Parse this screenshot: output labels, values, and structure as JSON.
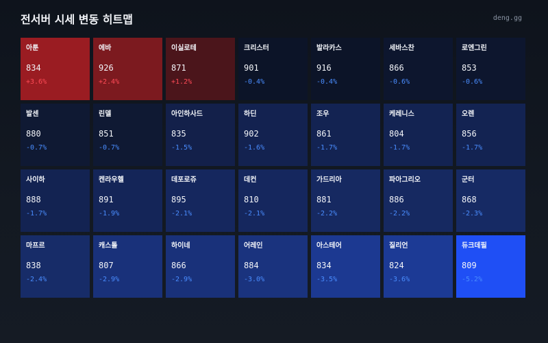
{
  "header": {
    "title": "전서버 시세 변동 히트맵",
    "brand": "deng.gg"
  },
  "colors": {
    "up_text": "#ff4b57",
    "down_text": "#4a8dff"
  },
  "cells": [
    {
      "name": "아툰",
      "price": "834",
      "change": "+3.6%",
      "dir": "up",
      "bg": "#9a1c22"
    },
    {
      "name": "에바",
      "price": "926",
      "change": "+2.4%",
      "dir": "up",
      "bg": "#7c1a1f"
    },
    {
      "name": "이실로테",
      "price": "871",
      "change": "+1.2%",
      "dir": "up",
      "bg": "#4b151b"
    },
    {
      "name": "크리스터",
      "price": "901",
      "change": "-0.4%",
      "dir": "down",
      "bg": "#0c1428"
    },
    {
      "name": "발라카스",
      "price": "916",
      "change": "-0.4%",
      "dir": "down",
      "bg": "#0c1428"
    },
    {
      "name": "세바스찬",
      "price": "866",
      "change": "-0.6%",
      "dir": "down",
      "bg": "#0d162e"
    },
    {
      "name": "로엔그린",
      "price": "853",
      "change": "-0.6%",
      "dir": "down",
      "bg": "#0d162e"
    },
    {
      "name": "발센",
      "price": "880",
      "change": "-0.7%",
      "dir": "down",
      "bg": "#0f1933"
    },
    {
      "name": "린델",
      "price": "851",
      "change": "-0.7%",
      "dir": "down",
      "bg": "#0f1933"
    },
    {
      "name": "아인하사드",
      "price": "835",
      "change": "-1.5%",
      "dir": "down",
      "bg": "#13204a"
    },
    {
      "name": "하딘",
      "price": "902",
      "change": "-1.6%",
      "dir": "down",
      "bg": "#132250"
    },
    {
      "name": "조우",
      "price": "861",
      "change": "-1.7%",
      "dir": "down",
      "bg": "#132352"
    },
    {
      "name": "케레니스",
      "price": "804",
      "change": "-1.7%",
      "dir": "down",
      "bg": "#132352"
    },
    {
      "name": "오렌",
      "price": "856",
      "change": "-1.7%",
      "dir": "down",
      "bg": "#132352"
    },
    {
      "name": "사이하",
      "price": "888",
      "change": "-1.7%",
      "dir": "down",
      "bg": "#132352"
    },
    {
      "name": "켄라우헬",
      "price": "891",
      "change": "-1.9%",
      "dir": "down",
      "bg": "#142558"
    },
    {
      "name": "데포로쥬",
      "price": "895",
      "change": "-2.1%",
      "dir": "down",
      "bg": "#15275e"
    },
    {
      "name": "데컨",
      "price": "810",
      "change": "-2.1%",
      "dir": "down",
      "bg": "#15275e"
    },
    {
      "name": "가드리아",
      "price": "881",
      "change": "-2.2%",
      "dir": "down",
      "bg": "#162961"
    },
    {
      "name": "파아그리오",
      "price": "886",
      "change": "-2.2%",
      "dir": "down",
      "bg": "#162961"
    },
    {
      "name": "군터",
      "price": "868",
      "change": "-2.3%",
      "dir": "down",
      "bg": "#162a64"
    },
    {
      "name": "마프르",
      "price": "838",
      "change": "-2.4%",
      "dir": "down",
      "bg": "#172c68"
    },
    {
      "name": "캐스톨",
      "price": "807",
      "change": "-2.9%",
      "dir": "down",
      "bg": "#19317a"
    },
    {
      "name": "하이네",
      "price": "866",
      "change": "-2.9%",
      "dir": "down",
      "bg": "#19317a"
    },
    {
      "name": "어레인",
      "price": "884",
      "change": "-3.0%",
      "dir": "down",
      "bg": "#1a337e"
    },
    {
      "name": "아스테어",
      "price": "834",
      "change": "-3.5%",
      "dir": "down",
      "bg": "#1c3991"
    },
    {
      "name": "질리언",
      "price": "824",
      "change": "-3.6%",
      "dir": "down",
      "bg": "#1c3a95"
    },
    {
      "name": "듀크데필",
      "price": "809",
      "change": "-5.2%",
      "dir": "down",
      "bg": "#1f4ff5"
    }
  ]
}
